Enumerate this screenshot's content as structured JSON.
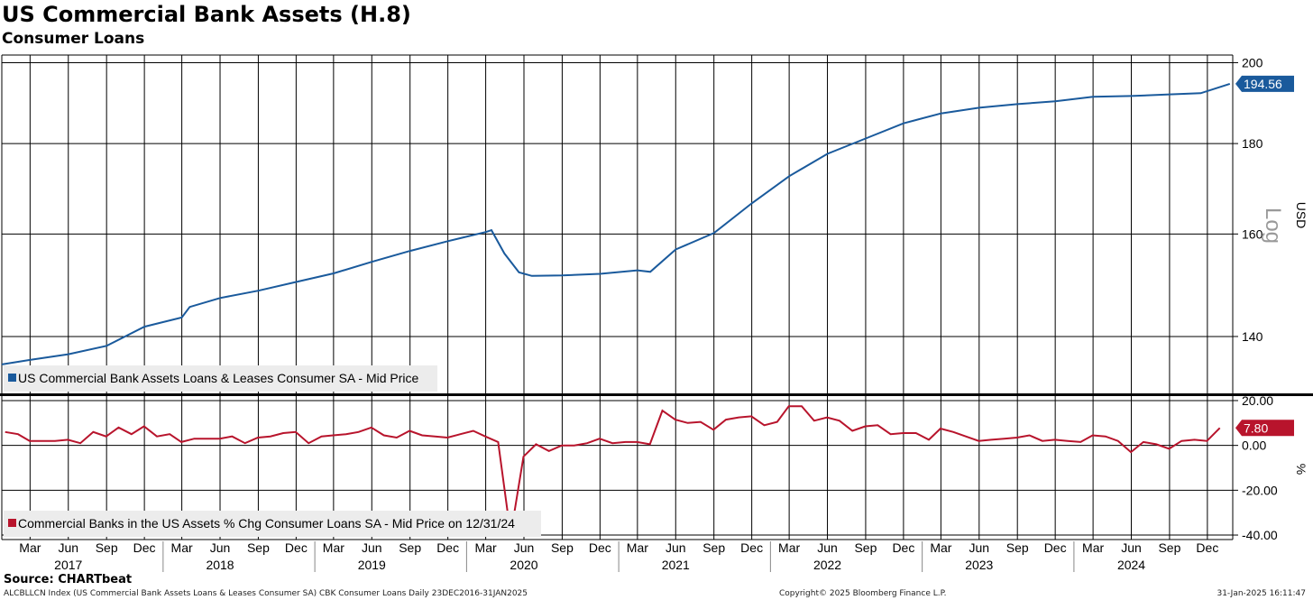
{
  "title": "US Commercial Bank Assets (H.8)",
  "subtitle": "Consumer Loans",
  "source": "Source: CHARTbeat",
  "footer": {
    "left": "ALCBLLCN Index (US Commercial Bank Assets Loans & Leases Consumer SA) CBK Consumer Loans  Daily 23DEC2016-31JAN2025",
    "middle": "Copyright© 2025 Bloomberg Finance L.P.",
    "right": "31-Jan-2025 16:11:47"
  },
  "colors": {
    "upper_series": "#1a5a9c",
    "lower_series": "#b8142c",
    "grid": "#000000"
  },
  "chart_data": [
    {
      "type": "line",
      "title": "US Commercial Bank Assets (H.8)",
      "subtitle": "Consumer Loans",
      "ylabel": "USD",
      "scale": "log",
      "scale_label": "Log",
      "ylim": [
        130,
        202
      ],
      "yticks": [
        140,
        160,
        180,
        200
      ],
      "legend": "US Commercial Bank Assets Loans & Leases Consumer SA - Mid Price",
      "legend_position": "bottom-left",
      "last_value_label": "194.56",
      "grid": true,
      "x_ticks": [
        "Mar",
        "Jun",
        "Sep",
        "Dec",
        "Mar",
        "Jun",
        "Sep",
        "Dec",
        "Mar",
        "Jun",
        "Sep",
        "Dec",
        "Mar",
        "Jun",
        "Sep",
        "Dec",
        "Mar",
        "Jun",
        "Sep",
        "Dec",
        "Mar",
        "Jun",
        "Sep",
        "Dec",
        "Mar",
        "Jun",
        "Sep",
        "Dec",
        "Mar",
        "Jun",
        "Sep",
        "Dec"
      ],
      "x_years": [
        "2017",
        "2018",
        "2019",
        "2020",
        "2021",
        "2022",
        "2023",
        "2024"
      ],
      "series": [
        {
          "name": "US Commercial Bank Assets Loans & Leases Consumer SA - Mid Price",
          "x": [
            "2016-12-23",
            "2017-03-01",
            "2017-06-01",
            "2017-09-01",
            "2017-12-01",
            "2018-03-01",
            "2018-03-20",
            "2018-06-01",
            "2018-09-01",
            "2018-12-01",
            "2019-03-01",
            "2019-06-01",
            "2019-09-01",
            "2019-12-01",
            "2020-03-01",
            "2020-03-15",
            "2020-04-15",
            "2020-05-20",
            "2020-06-20",
            "2020-09-01",
            "2020-12-01",
            "2021-03-01",
            "2021-04-01",
            "2021-06-01",
            "2021-09-01",
            "2021-12-01",
            "2022-03-01",
            "2022-06-01",
            "2022-09-01",
            "2022-12-01",
            "2023-03-01",
            "2023-06-01",
            "2023-09-01",
            "2023-12-01",
            "2024-03-01",
            "2024-06-01",
            "2024-09-01",
            "2024-11-15",
            "2025-01-24"
          ],
          "values": [
            135,
            135.8,
            136.8,
            138.3,
            141.8,
            143.5,
            145.5,
            147.2,
            148.6,
            150.3,
            152,
            154.3,
            156.5,
            158.5,
            160.4,
            160.8,
            156,
            152.2,
            151.5,
            151.6,
            151.9,
            152.6,
            152.3,
            156.8,
            160.2,
            166.5,
            172.5,
            177.6,
            181.2,
            184.8,
            187.2,
            188.6,
            189.5,
            190.2,
            191.3,
            191.5,
            191.9,
            192.2,
            194.56
          ]
        }
      ]
    },
    {
      "type": "line",
      "ylabel": "%",
      "ylim": [
        -42,
        22
      ],
      "yticks": [
        20.0,
        0.0,
        -20.0,
        -40.0
      ],
      "ytick_labels": [
        "20.00",
        "0.00",
        "-20.00",
        "-40.00"
      ],
      "legend": "Commercial Banks in the US Assets % Chg Consumer Loans SA - Mid Price on 12/31/24",
      "legend_position": "bottom-left",
      "last_value_label": "7.80",
      "grid": true,
      "series": [
        {
          "name": "Commercial Banks in the US Assets % Chg Consumer Loans SA - Mid Price on 12/31/24",
          "x": [
            "2016-12-31",
            "2017-01-31",
            "2017-02-28",
            "2017-03-31",
            "2017-04-30",
            "2017-05-31",
            "2017-06-30",
            "2017-07-31",
            "2017-08-31",
            "2017-09-30",
            "2017-10-31",
            "2017-11-30",
            "2017-12-31",
            "2018-01-31",
            "2018-02-28",
            "2018-03-31",
            "2018-04-30",
            "2018-05-31",
            "2018-06-30",
            "2018-07-31",
            "2018-08-31",
            "2018-09-30",
            "2018-10-31",
            "2018-11-30",
            "2018-12-31",
            "2019-01-31",
            "2019-02-28",
            "2019-03-31",
            "2019-04-30",
            "2019-05-31",
            "2019-06-30",
            "2019-07-31",
            "2019-08-31",
            "2019-09-30",
            "2019-10-31",
            "2019-11-30",
            "2019-12-31",
            "2020-01-31",
            "2020-02-29",
            "2020-03-31",
            "2020-04-30",
            "2020-05-31",
            "2020-06-30",
            "2020-07-31",
            "2020-08-31",
            "2020-09-30",
            "2020-10-31",
            "2020-11-30",
            "2020-12-31",
            "2021-01-31",
            "2021-02-28",
            "2021-03-31",
            "2021-04-30",
            "2021-05-31",
            "2021-06-30",
            "2021-07-31",
            "2021-08-31",
            "2021-09-30",
            "2021-10-31",
            "2021-11-30",
            "2021-12-31",
            "2022-01-31",
            "2022-02-28",
            "2022-03-31",
            "2022-04-30",
            "2022-05-31",
            "2022-06-30",
            "2022-07-31",
            "2022-08-31",
            "2022-09-30",
            "2022-10-31",
            "2022-11-30",
            "2022-12-31",
            "2023-01-31",
            "2023-02-28",
            "2023-03-31",
            "2023-04-30",
            "2023-05-31",
            "2023-06-30",
            "2023-07-31",
            "2023-08-31",
            "2023-09-30",
            "2023-10-31",
            "2023-11-30",
            "2023-12-31",
            "2024-01-31",
            "2024-02-29",
            "2024-03-31",
            "2024-04-30",
            "2024-05-31",
            "2024-06-30",
            "2024-07-31",
            "2024-08-31",
            "2024-09-30",
            "2024-10-31",
            "2024-11-30",
            "2024-12-31"
          ],
          "values": [
            6,
            5,
            2,
            2,
            2,
            2.5,
            1,
            6,
            4,
            8,
            5,
            8.5,
            4,
            5,
            1.5,
            3,
            3,
            3,
            4,
            1,
            3.5,
            4,
            5.5,
            6,
            1,
            4,
            4.5,
            5,
            6,
            8,
            4.5,
            3.5,
            6.5,
            4.5,
            4,
            3.5,
            5,
            6.5,
            4,
            1.5,
            -40,
            -5,
            0.5,
            -2.5,
            0,
            0,
            1,
            3,
            1,
            1.5,
            1.5,
            0.5,
            15.5,
            11.5,
            10,
            10.5,
            7,
            11.5,
            12.5,
            13,
            9,
            10.5,
            17.5,
            17.5,
            11,
            12.5,
            11,
            6.5,
            8.5,
            9,
            5,
            5.5,
            5.5,
            2.5,
            7.5,
            6,
            4,
            2,
            2.5,
            3,
            3.5,
            4.5,
            2,
            2.5,
            2,
            1.5,
            4.5,
            4,
            2,
            -3,
            1.5,
            0.5,
            -1.5,
            2,
            2.5,
            2,
            7.8
          ]
        }
      ]
    }
  ]
}
